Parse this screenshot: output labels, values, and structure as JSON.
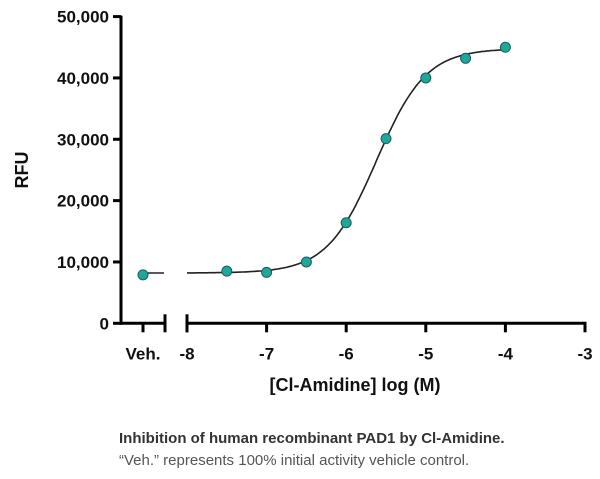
{
  "chart_data": {
    "type": "scatter",
    "title": "",
    "xlabel": "[Cl-Amidine] log (M)",
    "ylabel": "RFU",
    "xlim": [
      -8,
      -3
    ],
    "ylim": [
      0,
      50000
    ],
    "x_ticks": [
      -8,
      -7,
      -6,
      -5,
      -4,
      -3
    ],
    "x_tick_labels": [
      "-8",
      "-7",
      "-6",
      "-5",
      "-4",
      "-3"
    ],
    "y_ticks": [
      0,
      10000,
      20000,
      30000,
      40000,
      50000
    ],
    "y_tick_labels": [
      "0",
      "10,000",
      "20,000",
      "30,000",
      "40,000",
      "50,000"
    ],
    "vehicle": {
      "label": "Veh.",
      "value": 7900,
      "error": 700
    },
    "series": [
      {
        "x": [
          -7.5,
          -7,
          -6.5,
          -6,
          -5.5,
          -5,
          -4.5,
          -4
        ],
        "y": [
          8500,
          8300,
          10000,
          16400,
          30100,
          40000,
          43200,
          45000
        ]
      }
    ],
    "fit": {
      "model": "sigmoidal dose-response",
      "bottom": 8200,
      "top": 44800,
      "logIC50": -5.62,
      "hill": 1.4,
      "x_range": [
        -8,
        -4
      ]
    },
    "grid": false,
    "legend": "none",
    "colors": {
      "marker": "#1fa79b",
      "marker_edge": "#1b5e58",
      "curve": "#222222",
      "axis": "#000000"
    }
  },
  "caption": {
    "line1": "Inhibition of human recombinant PAD1 by Cl-Amidine.",
    "line2": "“Veh.” represents 100% initial activity vehicle control."
  }
}
